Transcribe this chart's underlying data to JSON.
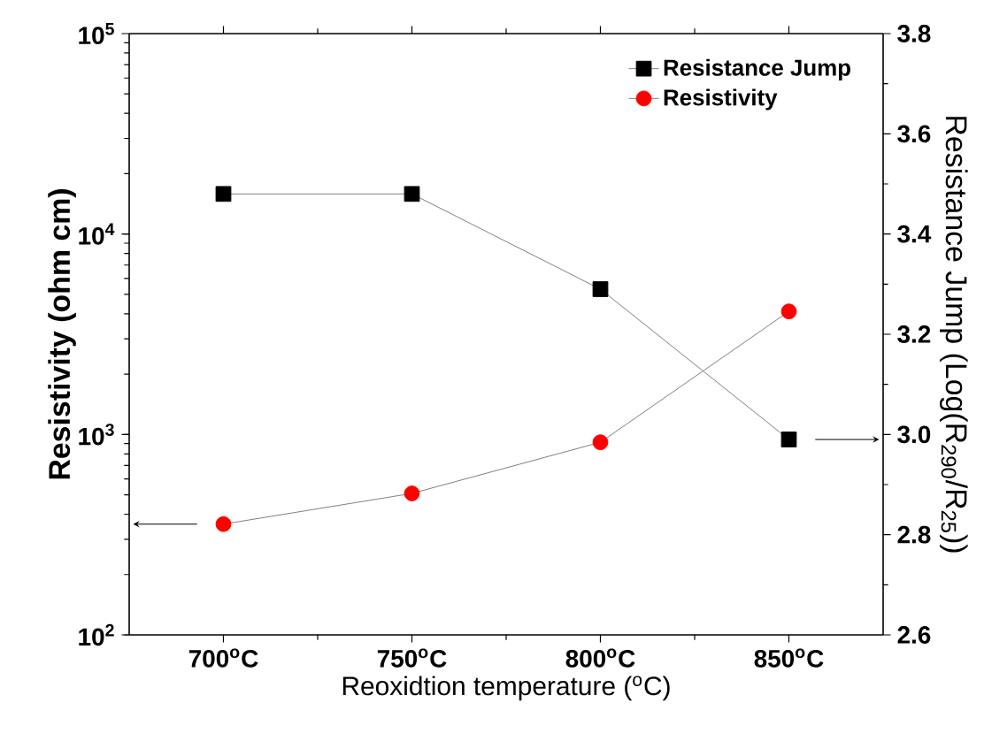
{
  "chart_data": {
    "type": "line",
    "xlabel": "Reoxidtion temperature ($^{o}$C)",
    "ylabel": "Resistivity (ohm cm)",
    "y2label": "Resistance Jump (Log(R$_{290}$/R$_{25}$))",
    "x": [
      700,
      750,
      800,
      850
    ],
    "xlim": [
      675,
      875
    ],
    "xticks": [
      {
        "value": 700,
        "label": "700$^{o}$C"
      },
      {
        "value": 750,
        "label": "750$^{o}$C"
      },
      {
        "value": 800,
        "label": "800$^{o}$C"
      },
      {
        "value": 850,
        "label": "850$^{o}$C"
      }
    ],
    "log": "y",
    "ylim": [
      100,
      100000
    ],
    "yticks": [
      {
        "value": 100,
        "label": "10$^{2}$"
      },
      {
        "value": 1000,
        "label": "10$^{3}$"
      },
      {
        "value": 10000,
        "label": "10$^{4}$"
      },
      {
        "value": 100000,
        "label": "10$^{5}$"
      }
    ],
    "y2lim": [
      2.6,
      3.8
    ],
    "y2ticks": [
      {
        "value": 2.6,
        "label": "2.6"
      },
      {
        "value": 2.8,
        "label": "2.8"
      },
      {
        "value": 3.0,
        "label": "3.0"
      },
      {
        "value": 3.2,
        "label": "3.2"
      },
      {
        "value": 3.4,
        "label": "3.4"
      },
      {
        "value": 3.6,
        "label": "3.6"
      },
      {
        "value": 3.8,
        "label": "3.8"
      }
    ],
    "legend": "top right",
    "grid": false,
    "series": [
      {
        "name": "Resistance Jump",
        "color": "#000000",
        "marker": "square",
        "axis": "y2",
        "values": [
          3.48,
          3.48,
          3.29,
          2.99
        ]
      },
      {
        "name": "Resistivity",
        "color": "#ff0000",
        "marker": "circle",
        "axis": "y",
        "values": [
          357,
          508,
          914,
          4110
        ]
      }
    ]
  }
}
